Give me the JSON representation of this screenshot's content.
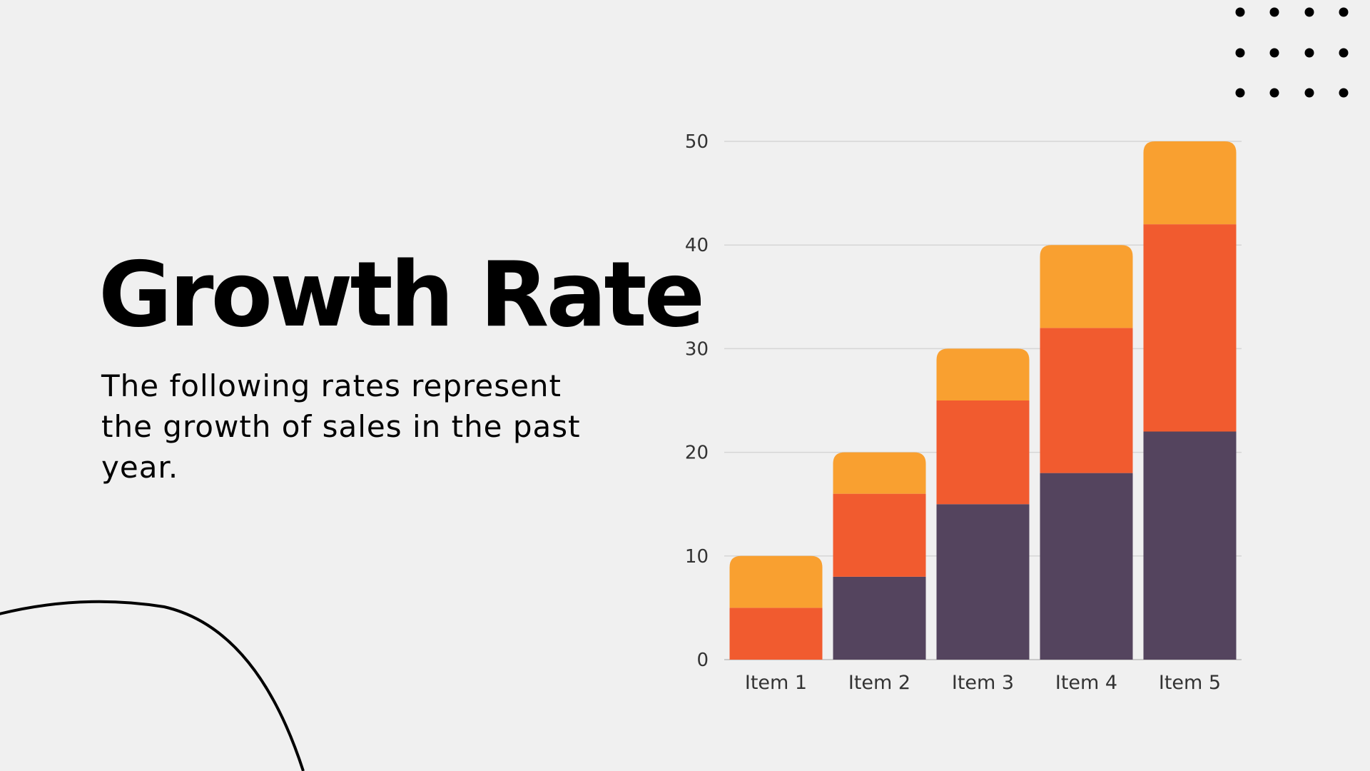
{
  "slide": {
    "title": "Growth Rate",
    "subtitle": "The following rates represent the growth of sales in the past year."
  },
  "decorations": {
    "dot_grid_icon": "dot-grid-icon",
    "arc_icon": "circle-outline-icon"
  },
  "chart_data": {
    "type": "bar",
    "stacked": true,
    "categories": [
      "Item 1",
      "Item 2",
      "Item 3",
      "Item 4",
      "Item 5"
    ],
    "series": [
      {
        "values": [
          0,
          8,
          15,
          18,
          22
        ],
        "color": "#54445e"
      },
      {
        "values": [
          5,
          8,
          10,
          14,
          20
        ],
        "color": "#f15b2f"
      },
      {
        "values": [
          5,
          4,
          5,
          8,
          8
        ],
        "color": "#f9a030"
      }
    ],
    "ylim": [
      0,
      50
    ],
    "yticks": [
      0,
      10,
      20,
      30,
      40,
      50
    ],
    "grid": true,
    "legend": "none"
  }
}
